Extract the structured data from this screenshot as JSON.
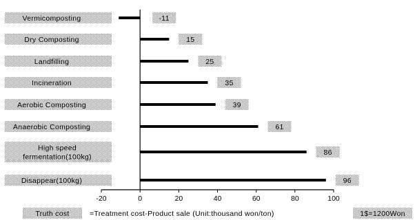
{
  "chart_data": {
    "type": "bar",
    "orientation": "horizontal",
    "categories": [
      [
        "Vermicomposting"
      ],
      [
        "Dry Composting"
      ],
      [
        "Landfilling"
      ],
      [
        "Incineration"
      ],
      [
        "Aerobic Composting"
      ],
      [
        "Anaerobic Composting"
      ],
      [
        "High speed",
        "fermentation(100kg)"
      ],
      [
        "Disappear(100kg)"
      ]
    ],
    "values": [
      -11,
      15,
      25,
      35,
      39,
      61,
      86,
      96
    ],
    "value_labels": [
      "-11",
      "15",
      "25",
      "35",
      "39",
      "61",
      "86",
      "96"
    ],
    "xlim": [
      -20,
      100
    ],
    "xticks": [
      "-20",
      "0",
      "20",
      "40",
      "60",
      "80",
      "100"
    ],
    "grid": false,
    "legend": "none",
    "footnote": {
      "key": "Truth cost",
      "formula": "=Treatment cost-Product sale (Unit:thousand won/ton)",
      "exchange": "1$=1200Won"
    },
    "colors": {
      "bar": "#000000",
      "label_box": "#d9d9d9",
      "axis": "#000000"
    }
  }
}
